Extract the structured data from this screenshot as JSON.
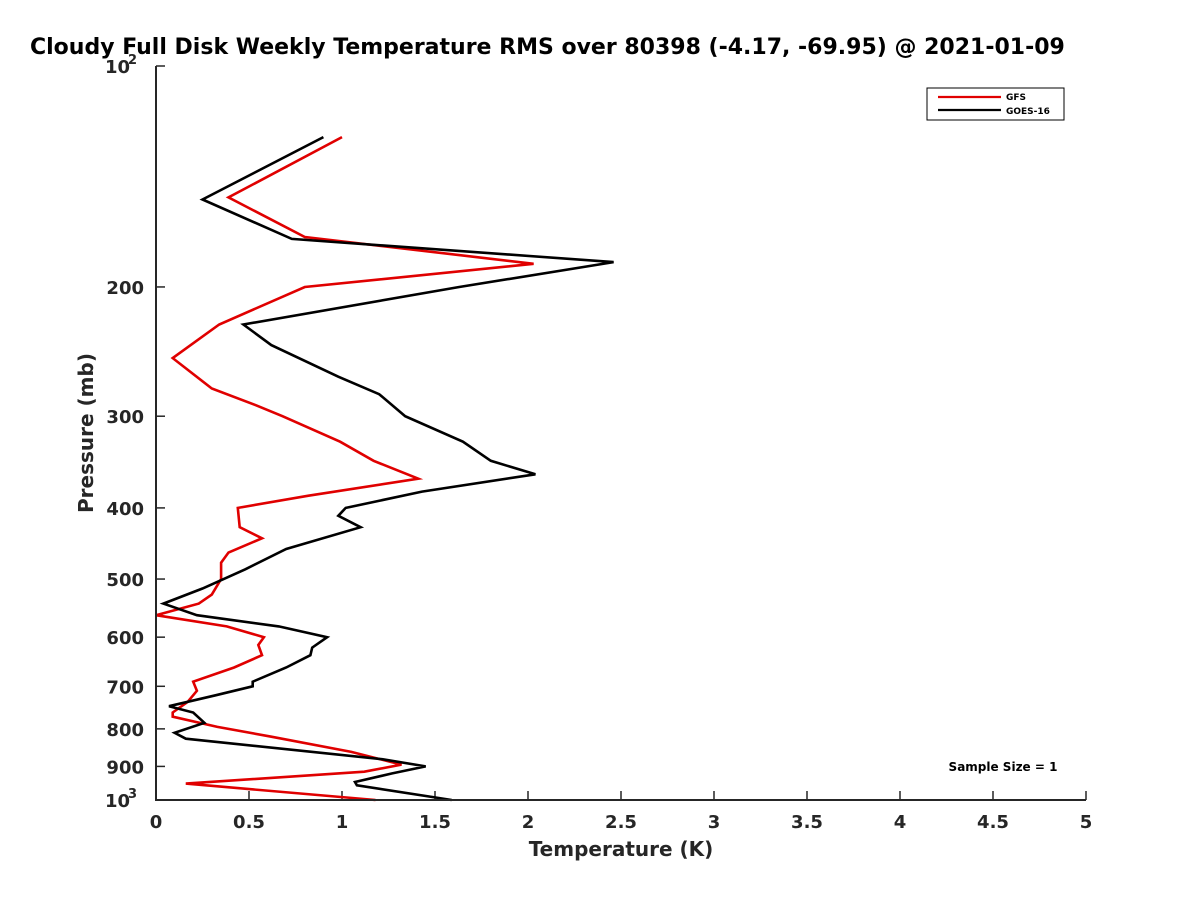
{
  "chart_data": {
    "type": "line",
    "title": "Cloudy Full Disk Weekly Temperature RMS over 80398 (-4.17, -69.95) @ 2021-01-09",
    "xlabel": "Temperature (K)",
    "ylabel": "Pressure (mb)",
    "xlim": [
      0,
      5
    ],
    "ylim": [
      1000,
      100
    ],
    "yscale": "log",
    "y_reversed": true,
    "grid": false,
    "legend_position": "top-right",
    "xticks": [
      0,
      0.5,
      1,
      1.5,
      2,
      2.5,
      3,
      3.5,
      4,
      4.5,
      5
    ],
    "xtick_labels": [
      "0",
      "0.5",
      "1",
      "1.5",
      "2",
      "2.5",
      "3",
      "3.5",
      "4",
      "4.5",
      "5"
    ],
    "yticks": [
      {
        "value": 100,
        "base": "10",
        "exp": "2"
      },
      {
        "value": 200,
        "label": "200"
      },
      {
        "value": 300,
        "label": "300"
      },
      {
        "value": 400,
        "label": "400"
      },
      {
        "value": 500,
        "label": "500"
      },
      {
        "value": 600,
        "label": "600"
      },
      {
        "value": 700,
        "label": "700"
      },
      {
        "value": 800,
        "label": "800"
      },
      {
        "value": 900,
        "label": "900"
      },
      {
        "value": 1000,
        "base": "10",
        "exp": "3"
      }
    ],
    "annotation": "Sample Size = 1",
    "series": [
      {
        "name": "GFS",
        "color": "#e00000",
        "points": [
          [
            1.0,
            125
          ],
          [
            0.39,
            151
          ],
          [
            0.8,
            171
          ],
          [
            2.03,
            186
          ],
          [
            0.8,
            200
          ],
          [
            0.34,
            225
          ],
          [
            0.09,
            250
          ],
          [
            0.3,
            275
          ],
          [
            0.54,
            290
          ],
          [
            0.68,
            300
          ],
          [
            0.99,
            325
          ],
          [
            1.17,
            345
          ],
          [
            1.41,
            365
          ],
          [
            0.82,
            385
          ],
          [
            0.44,
            400
          ],
          [
            0.45,
            425
          ],
          [
            0.57,
            440
          ],
          [
            0.39,
            460
          ],
          [
            0.35,
            475
          ],
          [
            0.35,
            500
          ],
          [
            0.3,
            525
          ],
          [
            0.23,
            540
          ],
          [
            0.0,
            560
          ],
          [
            0.38,
            580
          ],
          [
            0.58,
            600
          ],
          [
            0.55,
            615
          ],
          [
            0.57,
            635
          ],
          [
            0.42,
            660
          ],
          [
            0.2,
            690
          ],
          [
            0.22,
            710
          ],
          [
            0.17,
            735
          ],
          [
            0.09,
            760
          ],
          [
            0.09,
            770
          ],
          [
            0.33,
            795
          ],
          [
            0.62,
            820
          ],
          [
            1.05,
            860
          ],
          [
            1.32,
            895
          ],
          [
            1.12,
            915
          ],
          [
            0.16,
            950
          ],
          [
            1.18,
            1000
          ]
        ]
      },
      {
        "name": "GOES-16",
        "color": "#000000",
        "points": [
          [
            0.9,
            125
          ],
          [
            0.25,
            152
          ],
          [
            0.73,
            172
          ],
          [
            2.46,
            185
          ],
          [
            1.63,
            200
          ],
          [
            0.47,
            225
          ],
          [
            0.62,
            240
          ],
          [
            0.98,
            265
          ],
          [
            1.2,
            280
          ],
          [
            1.34,
            300
          ],
          [
            1.65,
            325
          ],
          [
            1.8,
            345
          ],
          [
            2.04,
            360
          ],
          [
            1.43,
            380
          ],
          [
            1.02,
            400
          ],
          [
            0.98,
            410
          ],
          [
            1.1,
            425
          ],
          [
            0.7,
            455
          ],
          [
            0.48,
            485
          ],
          [
            0.25,
            515
          ],
          [
            0.04,
            540
          ],
          [
            0.22,
            560
          ],
          [
            0.66,
            580
          ],
          [
            0.92,
            600
          ],
          [
            0.84,
            620
          ],
          [
            0.83,
            635
          ],
          [
            0.7,
            660
          ],
          [
            0.52,
            690
          ],
          [
            0.52,
            700
          ],
          [
            0.32,
            720
          ],
          [
            0.07,
            745
          ],
          [
            0.2,
            760
          ],
          [
            0.26,
            785
          ],
          [
            0.1,
            810
          ],
          [
            0.16,
            825
          ],
          [
            1.22,
            880
          ],
          [
            1.45,
            900
          ],
          [
            1.27,
            920
          ],
          [
            1.07,
            945
          ],
          [
            1.08,
            955
          ],
          [
            1.59,
            1000
          ]
        ]
      }
    ]
  }
}
